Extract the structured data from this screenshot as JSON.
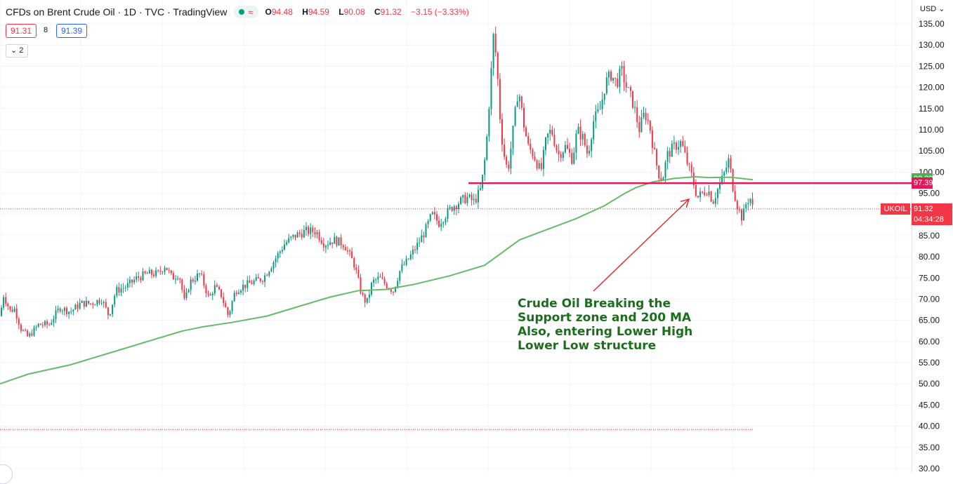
{
  "header": {
    "symbol_title": "CFDs on Brent Crude Oil · 1D · TVC · TradingView",
    "status_wave": "≈",
    "ohlc": {
      "o_key": "O",
      "o_val": "94.48",
      "h_key": "H",
      "h_val": "94.59",
      "l_key": "L",
      "l_val": "90.08",
      "c_key": "C",
      "c_val": "91.32",
      "change": "−3.15 (−3.33%)"
    },
    "sell_price": "91.31",
    "spread": "8",
    "buy_price": "91.39",
    "indicator_toggle": "⌄ 2"
  },
  "annotation": {
    "text": "Crude Oil Breaking the\nSupport zone and 200 MA\nAlso, entering Lower High\nLower Low structure"
  },
  "axis": {
    "currency": "USD ⌄"
  },
  "colors": {
    "up": "#089981",
    "down": "#f23645",
    "ma": "#66bb6a",
    "support": "#e0195b",
    "annotation": "#1b6e1b",
    "arrow": "#e52b2b"
  },
  "chart_data": {
    "type": "candlestick",
    "symbol": "UKOIL",
    "interval": "1D",
    "ylim": [
      30,
      137
    ],
    "yticks": [
      30,
      35,
      40,
      45,
      50,
      55,
      60,
      65,
      70,
      75,
      80,
      85,
      90,
      95,
      100,
      105,
      110,
      115,
      120,
      125,
      130,
      135
    ],
    "price_path": [
      [
        0,
        66
      ],
      [
        5,
        71
      ],
      [
        15,
        67
      ],
      [
        20,
        68
      ],
      [
        30,
        63
      ],
      [
        40,
        61
      ],
      [
        55,
        64
      ],
      [
        70,
        64
      ],
      [
        85,
        68
      ],
      [
        100,
        67
      ],
      [
        115,
        69
      ],
      [
        130,
        69
      ],
      [
        145,
        70
      ],
      [
        155,
        66
      ],
      [
        165,
        72
      ],
      [
        180,
        73
      ],
      [
        195,
        75
      ],
      [
        210,
        76
      ],
      [
        225,
        76
      ],
      [
        235,
        78
      ],
      [
        245,
        75
      ],
      [
        255,
        76
      ],
      [
        263,
        69
      ],
      [
        270,
        74
      ],
      [
        285,
        76
      ],
      [
        298,
        70
      ],
      [
        305,
        73
      ],
      [
        315,
        71
      ],
      [
        325,
        66
      ],
      [
        335,
        72
      ],
      [
        345,
        73
      ],
      [
        360,
        74
      ],
      [
        375,
        75
      ],
      [
        390,
        79
      ],
      [
        405,
        83
      ],
      [
        420,
        85
      ],
      [
        435,
        86
      ],
      [
        450,
        86
      ],
      [
        462,
        83
      ],
      [
        475,
        84
      ],
      [
        490,
        83
      ],
      [
        505,
        78
      ],
      [
        515,
        71
      ],
      [
        522,
        69
      ],
      [
        530,
        74
      ],
      [
        540,
        75
      ],
      [
        552,
        73
      ],
      [
        560,
        72
      ],
      [
        570,
        77
      ],
      [
        580,
        79
      ],
      [
        595,
        83
      ],
      [
        605,
        86
      ],
      [
        615,
        90
      ],
      [
        625,
        88
      ],
      [
        635,
        90
      ],
      [
        645,
        92
      ],
      [
        655,
        93
      ],
      [
        665,
        94
      ],
      [
        675,
        93
      ],
      [
        685,
        96
      ],
      [
        692,
        105
      ],
      [
        698,
        120
      ],
      [
        703,
        133
      ],
      [
        708,
        124
      ],
      [
        713,
        110
      ],
      [
        718,
        104
      ],
      [
        723,
        100
      ],
      [
        730,
        109
      ],
      [
        738,
        120
      ],
      [
        745,
        112
      ],
      [
        752,
        106
      ],
      [
        760,
        104
      ],
      [
        770,
        100
      ],
      [
        778,
        108
      ],
      [
        785,
        110
      ],
      [
        795,
        104
      ],
      [
        805,
        106
      ],
      [
        815,
        103
      ],
      [
        822,
        110
      ],
      [
        830,
        108
      ],
      [
        837,
        104
      ],
      [
        845,
        112
      ],
      [
        855,
        115
      ],
      [
        862,
        121
      ],
      [
        870,
        123
      ],
      [
        878,
        121
      ],
      [
        885,
        124
      ],
      [
        892,
        120
      ],
      [
        900,
        117
      ],
      [
        905,
        114
      ],
      [
        910,
        110
      ],
      [
        918,
        114
      ],
      [
        925,
        111
      ],
      [
        930,
        106
      ],
      [
        937,
        100
      ],
      [
        943,
        98
      ],
      [
        950,
        104
      ],
      [
        960,
        106
      ],
      [
        970,
        107
      ],
      [
        977,
        103
      ],
      [
        985,
        99
      ],
      [
        993,
        94
      ],
      [
        1000,
        95
      ],
      [
        1008,
        96
      ],
      [
        1015,
        93
      ],
      [
        1022,
        96
      ],
      [
        1030,
        99
      ],
      [
        1038,
        103
      ],
      [
        1043,
        97
      ],
      [
        1050,
        92
      ],
      [
        1057,
        89
      ],
      [
        1063,
        93
      ],
      [
        1068,
        94
      ],
      [
        1072,
        91.32
      ]
    ],
    "ma_path": [
      [
        0,
        50
      ],
      [
        40,
        52.3
      ],
      [
        100,
        54.5
      ],
      [
        160,
        57.5
      ],
      [
        220,
        60.5
      ],
      [
        260,
        62.5
      ],
      [
        290,
        63.5
      ],
      [
        330,
        64.5
      ],
      [
        380,
        66
      ],
      [
        430,
        68.5
      ],
      [
        470,
        70.5
      ],
      [
        510,
        72
      ],
      [
        550,
        72.3
      ],
      [
        590,
        73.5
      ],
      [
        640,
        75.5
      ],
      [
        690,
        78
      ],
      [
        715,
        81
      ],
      [
        740,
        84
      ],
      [
        780,
        86.5
      ],
      [
        820,
        89
      ],
      [
        860,
        92
      ],
      [
        890,
        95
      ],
      [
        905,
        96.3
      ],
      [
        930,
        97.7
      ],
      [
        960,
        98.5
      ],
      [
        990,
        98.9
      ],
      [
        1010,
        98.7
      ],
      [
        1040,
        98.8
      ],
      [
        1072,
        98.2
      ]
    ],
    "support_level": 97.39,
    "support_x_range": [
      667,
      1298
    ],
    "ma_label": "98.39",
    "support_label": "97.39",
    "last_price": 91.32,
    "last_label": "91.32",
    "countdown": "04:34:28",
    "symbol_label": "UKOIL",
    "lower_dotted_level": 39.2,
    "arrow": {
      "from": [
        845,
        415
      ],
      "to": [
        981,
        284
      ]
    }
  }
}
